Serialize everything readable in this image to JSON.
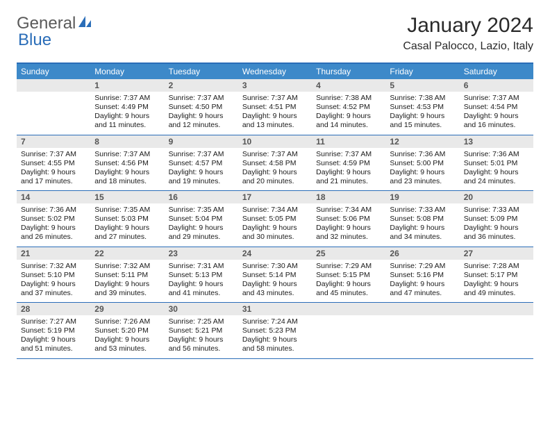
{
  "brand": {
    "part1": "General",
    "part2": "Blue"
  },
  "title": "January 2024",
  "location": "Casal Palocco, Lazio, Italy",
  "colors": {
    "header_bg": "#3d89c9",
    "border": "#2a6db8",
    "daynum_bg": "#e9e9e9",
    "logo_gray": "#5a5a5a",
    "logo_blue": "#2a6db8"
  },
  "typography": {
    "title_fontsize": 30,
    "location_fontsize": 16,
    "weekday_fontsize": 12,
    "daynum_fontsize": 12,
    "body_fontsize": 10.5
  },
  "weekdays": [
    "Sunday",
    "Monday",
    "Tuesday",
    "Wednesday",
    "Thursday",
    "Friday",
    "Saturday"
  ],
  "weeks": [
    [
      {
        "day": "",
        "lines": []
      },
      {
        "day": "1",
        "lines": [
          "Sunrise: 7:37 AM",
          "Sunset: 4:49 PM",
          "Daylight: 9 hours",
          "and 11 minutes."
        ]
      },
      {
        "day": "2",
        "lines": [
          "Sunrise: 7:37 AM",
          "Sunset: 4:50 PM",
          "Daylight: 9 hours",
          "and 12 minutes."
        ]
      },
      {
        "day": "3",
        "lines": [
          "Sunrise: 7:37 AM",
          "Sunset: 4:51 PM",
          "Daylight: 9 hours",
          "and 13 minutes."
        ]
      },
      {
        "day": "4",
        "lines": [
          "Sunrise: 7:38 AM",
          "Sunset: 4:52 PM",
          "Daylight: 9 hours",
          "and 14 minutes."
        ]
      },
      {
        "day": "5",
        "lines": [
          "Sunrise: 7:38 AM",
          "Sunset: 4:53 PM",
          "Daylight: 9 hours",
          "and 15 minutes."
        ]
      },
      {
        "day": "6",
        "lines": [
          "Sunrise: 7:37 AM",
          "Sunset: 4:54 PM",
          "Daylight: 9 hours",
          "and 16 minutes."
        ]
      }
    ],
    [
      {
        "day": "7",
        "lines": [
          "Sunrise: 7:37 AM",
          "Sunset: 4:55 PM",
          "Daylight: 9 hours",
          "and 17 minutes."
        ]
      },
      {
        "day": "8",
        "lines": [
          "Sunrise: 7:37 AM",
          "Sunset: 4:56 PM",
          "Daylight: 9 hours",
          "and 18 minutes."
        ]
      },
      {
        "day": "9",
        "lines": [
          "Sunrise: 7:37 AM",
          "Sunset: 4:57 PM",
          "Daylight: 9 hours",
          "and 19 minutes."
        ]
      },
      {
        "day": "10",
        "lines": [
          "Sunrise: 7:37 AM",
          "Sunset: 4:58 PM",
          "Daylight: 9 hours",
          "and 20 minutes."
        ]
      },
      {
        "day": "11",
        "lines": [
          "Sunrise: 7:37 AM",
          "Sunset: 4:59 PM",
          "Daylight: 9 hours",
          "and 21 minutes."
        ]
      },
      {
        "day": "12",
        "lines": [
          "Sunrise: 7:36 AM",
          "Sunset: 5:00 PM",
          "Daylight: 9 hours",
          "and 23 minutes."
        ]
      },
      {
        "day": "13",
        "lines": [
          "Sunrise: 7:36 AM",
          "Sunset: 5:01 PM",
          "Daylight: 9 hours",
          "and 24 minutes."
        ]
      }
    ],
    [
      {
        "day": "14",
        "lines": [
          "Sunrise: 7:36 AM",
          "Sunset: 5:02 PM",
          "Daylight: 9 hours",
          "and 26 minutes."
        ]
      },
      {
        "day": "15",
        "lines": [
          "Sunrise: 7:35 AM",
          "Sunset: 5:03 PM",
          "Daylight: 9 hours",
          "and 27 minutes."
        ]
      },
      {
        "day": "16",
        "lines": [
          "Sunrise: 7:35 AM",
          "Sunset: 5:04 PM",
          "Daylight: 9 hours",
          "and 29 minutes."
        ]
      },
      {
        "day": "17",
        "lines": [
          "Sunrise: 7:34 AM",
          "Sunset: 5:05 PM",
          "Daylight: 9 hours",
          "and 30 minutes."
        ]
      },
      {
        "day": "18",
        "lines": [
          "Sunrise: 7:34 AM",
          "Sunset: 5:06 PM",
          "Daylight: 9 hours",
          "and 32 minutes."
        ]
      },
      {
        "day": "19",
        "lines": [
          "Sunrise: 7:33 AM",
          "Sunset: 5:08 PM",
          "Daylight: 9 hours",
          "and 34 minutes."
        ]
      },
      {
        "day": "20",
        "lines": [
          "Sunrise: 7:33 AM",
          "Sunset: 5:09 PM",
          "Daylight: 9 hours",
          "and 36 minutes."
        ]
      }
    ],
    [
      {
        "day": "21",
        "lines": [
          "Sunrise: 7:32 AM",
          "Sunset: 5:10 PM",
          "Daylight: 9 hours",
          "and 37 minutes."
        ]
      },
      {
        "day": "22",
        "lines": [
          "Sunrise: 7:32 AM",
          "Sunset: 5:11 PM",
          "Daylight: 9 hours",
          "and 39 minutes."
        ]
      },
      {
        "day": "23",
        "lines": [
          "Sunrise: 7:31 AM",
          "Sunset: 5:13 PM",
          "Daylight: 9 hours",
          "and 41 minutes."
        ]
      },
      {
        "day": "24",
        "lines": [
          "Sunrise: 7:30 AM",
          "Sunset: 5:14 PM",
          "Daylight: 9 hours",
          "and 43 minutes."
        ]
      },
      {
        "day": "25",
        "lines": [
          "Sunrise: 7:29 AM",
          "Sunset: 5:15 PM",
          "Daylight: 9 hours",
          "and 45 minutes."
        ]
      },
      {
        "day": "26",
        "lines": [
          "Sunrise: 7:29 AM",
          "Sunset: 5:16 PM",
          "Daylight: 9 hours",
          "and 47 minutes."
        ]
      },
      {
        "day": "27",
        "lines": [
          "Sunrise: 7:28 AM",
          "Sunset: 5:17 PM",
          "Daylight: 9 hours",
          "and 49 minutes."
        ]
      }
    ],
    [
      {
        "day": "28",
        "lines": [
          "Sunrise: 7:27 AM",
          "Sunset: 5:19 PM",
          "Daylight: 9 hours",
          "and 51 minutes."
        ]
      },
      {
        "day": "29",
        "lines": [
          "Sunrise: 7:26 AM",
          "Sunset: 5:20 PM",
          "Daylight: 9 hours",
          "and 53 minutes."
        ]
      },
      {
        "day": "30",
        "lines": [
          "Sunrise: 7:25 AM",
          "Sunset: 5:21 PM",
          "Daylight: 9 hours",
          "and 56 minutes."
        ]
      },
      {
        "day": "31",
        "lines": [
          "Sunrise: 7:24 AM",
          "Sunset: 5:23 PM",
          "Daylight: 9 hours",
          "and 58 minutes."
        ]
      },
      {
        "day": "",
        "lines": []
      },
      {
        "day": "",
        "lines": []
      },
      {
        "day": "",
        "lines": []
      }
    ]
  ]
}
